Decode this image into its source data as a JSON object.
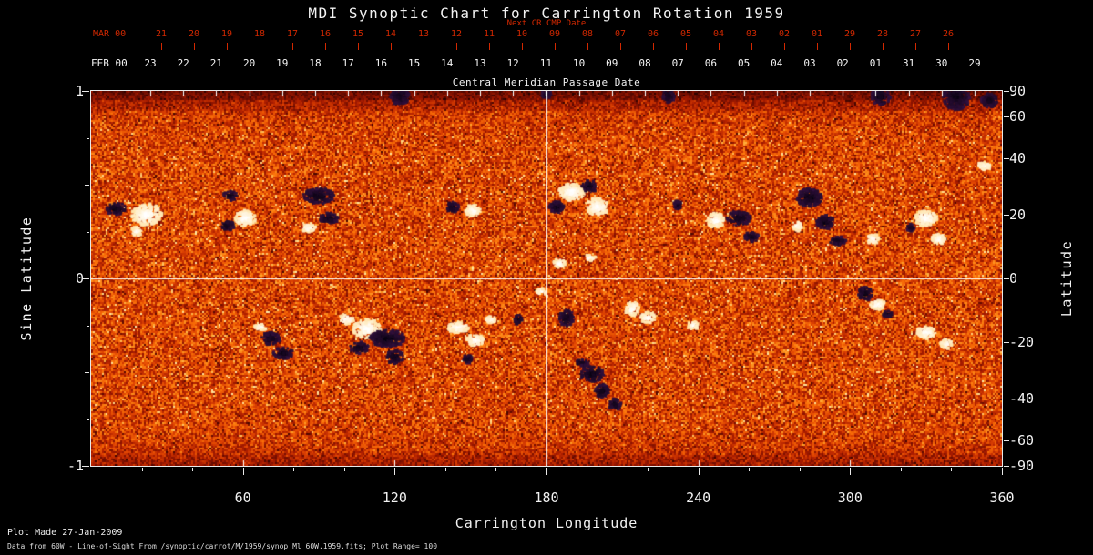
{
  "title": "MDI Synoptic Chart for Carrington Rotation 1959",
  "colors": {
    "background": "#000000",
    "red": "#d22800",
    "white": "#ffffff",
    "frame": "#e8e8e8"
  },
  "top_axis": {
    "next_cr_label": "Next CR CMP Date",
    "next_cr_month": "MAR 00",
    "next_cr_dates": [
      "21",
      "20",
      "19",
      "18",
      "17",
      "16",
      "15",
      "14",
      "13",
      "12",
      "11",
      "10",
      "09",
      "08",
      "07",
      "06",
      "05",
      "04",
      "03",
      "02",
      "01",
      "29",
      "28",
      "27",
      "26"
    ],
    "cmp_month": "FEB 00",
    "cmp_dates": [
      "23",
      "22",
      "21",
      "20",
      "19",
      "18",
      "17",
      "16",
      "15",
      "14",
      "13",
      "12",
      "11",
      "10",
      "09",
      "08",
      "07",
      "06",
      "05",
      "04",
      "03",
      "02",
      "01",
      "31",
      "30",
      "29"
    ],
    "cmp_axis_label": "Central Meridian Passage Date"
  },
  "axes": {
    "x_label": "Carrington Longitude",
    "x_ticks": [
      60,
      120,
      180,
      240,
      300,
      360
    ],
    "x_range": [
      0,
      360
    ],
    "left_label": "Sine Latitude",
    "left_ticks": [
      "1",
      "0",
      "-1"
    ],
    "right_label": "Latitude",
    "right_ticks": [
      90,
      60,
      40,
      20,
      0,
      -20,
      -40,
      -60,
      -90
    ]
  },
  "footer": {
    "line1": "Plot Made 27-Jan-2009",
    "line2": "Data from 60W - Line-of-Sight From /synoptic/carrot/M/1959/synop_Ml_60W.1959.fits; Plot Range=  100"
  },
  "chart_data": {
    "type": "heatmap",
    "title": "MDI Synoptic Chart for Carrington Rotation 1959",
    "xlabel": "Carrington Longitude",
    "ylabel_left": "Sine Latitude",
    "ylabel_right": "Latitude",
    "x_range": [
      0,
      360
    ],
    "y_range_sine_latitude": [
      -1,
      1
    ],
    "x_ticks": [
      60,
      120,
      180,
      240,
      300,
      360
    ],
    "left_ticks": [
      1,
      0,
      -1
    ],
    "right_ticks_deg": [
      90,
      60,
      40,
      20,
      0,
      -20,
      -40,
      -60,
      -90
    ],
    "reference_lines": {
      "longitude": 180,
      "sine_latitude": 0
    },
    "plot_range_gauss": 100,
    "colormap": [
      "#190000",
      "#640a00",
      "#aa1c00",
      "#de4202",
      "#fa7008",
      "#ffa52d",
      "#ffebaa"
    ],
    "polarity_colors": {
      "positive": "#fffae8",
      "negative": "#060310"
    },
    "active_regions": [
      {
        "lon": 22,
        "slat": 0.34,
        "r": 11,
        "pol": 1
      },
      {
        "lon": 10,
        "slat": 0.37,
        "r": 7,
        "pol": -1
      },
      {
        "lon": 18,
        "slat": 0.25,
        "r": 5,
        "pol": 1
      },
      {
        "lon": 54,
        "slat": 0.28,
        "r": 6,
        "pol": -1
      },
      {
        "lon": 61,
        "slat": 0.32,
        "r": 9,
        "pol": 1
      },
      {
        "lon": 55,
        "slat": 0.44,
        "r": 5,
        "pol": -1
      },
      {
        "lon": 90,
        "slat": 0.44,
        "r": 11,
        "pol": -1
      },
      {
        "lon": 94,
        "slat": 0.32,
        "r": 8,
        "pol": -1
      },
      {
        "lon": 86,
        "slat": 0.27,
        "r": 5,
        "pol": 1
      },
      {
        "lon": 151,
        "slat": 0.36,
        "r": 8,
        "pol": 1
      },
      {
        "lon": 143,
        "slat": 0.38,
        "r": 6,
        "pol": -1
      },
      {
        "lon": 190,
        "slat": 0.46,
        "r": 12,
        "pol": 1
      },
      {
        "lon": 200,
        "slat": 0.38,
        "r": 9,
        "pol": 1
      },
      {
        "lon": 184,
        "slat": 0.38,
        "r": 8,
        "pol": -1
      },
      {
        "lon": 197,
        "slat": 0.49,
        "r": 6,
        "pol": -1
      },
      {
        "lon": 232,
        "slat": 0.39,
        "r": 5,
        "pol": -1
      },
      {
        "lon": 247,
        "slat": 0.31,
        "r": 9,
        "pol": 1
      },
      {
        "lon": 256,
        "slat": 0.32,
        "r": 8,
        "pol": -1
      },
      {
        "lon": 261,
        "slat": 0.22,
        "r": 6,
        "pol": -1
      },
      {
        "lon": 284,
        "slat": 0.43,
        "r": 11,
        "pol": -1
      },
      {
        "lon": 290,
        "slat": 0.3,
        "r": 9,
        "pol": -1
      },
      {
        "lon": 279,
        "slat": 0.28,
        "r": 5,
        "pol": 1
      },
      {
        "lon": 295,
        "slat": 0.2,
        "r": 6,
        "pol": -1
      },
      {
        "lon": 309,
        "slat": 0.21,
        "r": 6,
        "pol": 1
      },
      {
        "lon": 330,
        "slat": 0.32,
        "r": 10,
        "pol": 1
      },
      {
        "lon": 335,
        "slat": 0.21,
        "r": 7,
        "pol": 1
      },
      {
        "lon": 324,
        "slat": 0.27,
        "r": 4,
        "pol": -1
      },
      {
        "lon": 353,
        "slat": 0.6,
        "r": 5,
        "pol": 1
      },
      {
        "lon": 185,
        "slat": 0.08,
        "r": 5,
        "pol": 1
      },
      {
        "lon": 197,
        "slat": 0.11,
        "r": 4,
        "pol": 1
      },
      {
        "lon": 178,
        "slat": -0.07,
        "r": 4,
        "pol": 1
      },
      {
        "lon": 71,
        "slat": -0.32,
        "r": 9,
        "pol": -1
      },
      {
        "lon": 76,
        "slat": -0.4,
        "r": 7,
        "pol": -1
      },
      {
        "lon": 67,
        "slat": -0.26,
        "r": 5,
        "pol": 1
      },
      {
        "lon": 109,
        "slat": -0.27,
        "r": 11,
        "pol": 1
      },
      {
        "lon": 117,
        "slat": -0.32,
        "r": 12,
        "pol": -1
      },
      {
        "lon": 106,
        "slat": -0.37,
        "r": 7,
        "pol": -1
      },
      {
        "lon": 120,
        "slat": -0.42,
        "r": 7,
        "pol": -1
      },
      {
        "lon": 101,
        "slat": -0.22,
        "r": 6,
        "pol": 1
      },
      {
        "lon": 145,
        "slat": -0.26,
        "r": 8,
        "pol": 1
      },
      {
        "lon": 152,
        "slat": -0.33,
        "r": 7,
        "pol": 1
      },
      {
        "lon": 158,
        "slat": -0.22,
        "r": 5,
        "pol": 1
      },
      {
        "lon": 149,
        "slat": -0.43,
        "r": 5,
        "pol": -1
      },
      {
        "lon": 169,
        "slat": -0.22,
        "r": 5,
        "pol": -1
      },
      {
        "lon": 188,
        "slat": -0.21,
        "r": 8,
        "pol": -1
      },
      {
        "lon": 198,
        "slat": -0.51,
        "r": 8,
        "pol": -1
      },
      {
        "lon": 202,
        "slat": -0.6,
        "r": 7,
        "pol": -1
      },
      {
        "lon": 207,
        "slat": -0.67,
        "r": 6,
        "pol": -1
      },
      {
        "lon": 194,
        "slat": -0.45,
        "r": 5,
        "pol": -1
      },
      {
        "lon": 214,
        "slat": -0.16,
        "r": 7,
        "pol": 1
      },
      {
        "lon": 220,
        "slat": -0.21,
        "r": 6,
        "pol": 1
      },
      {
        "lon": 238,
        "slat": -0.25,
        "r": 5,
        "pol": 1
      },
      {
        "lon": 306,
        "slat": -0.08,
        "r": 7,
        "pol": -1
      },
      {
        "lon": 311,
        "slat": -0.14,
        "r": 6,
        "pol": 1
      },
      {
        "lon": 315,
        "slat": -0.19,
        "r": 4,
        "pol": -1
      },
      {
        "lon": 330,
        "slat": -0.29,
        "r": 8,
        "pol": 1
      },
      {
        "lon": 338,
        "slat": -0.35,
        "r": 5,
        "pol": 1
      },
      {
        "lon": 122,
        "slat": 0.97,
        "r": 10,
        "pol": -1
      },
      {
        "lon": 180,
        "slat": 0.98,
        "r": 5,
        "pol": -1
      },
      {
        "lon": 228,
        "slat": 0.975,
        "r": 7,
        "pol": -1
      },
      {
        "lon": 312,
        "slat": 0.97,
        "r": 8,
        "pol": -1
      },
      {
        "lon": 342,
        "slat": 0.97,
        "r": 14,
        "pol": -1
      },
      {
        "lon": 355,
        "slat": 0.95,
        "r": 8,
        "pol": -1
      }
    ]
  }
}
